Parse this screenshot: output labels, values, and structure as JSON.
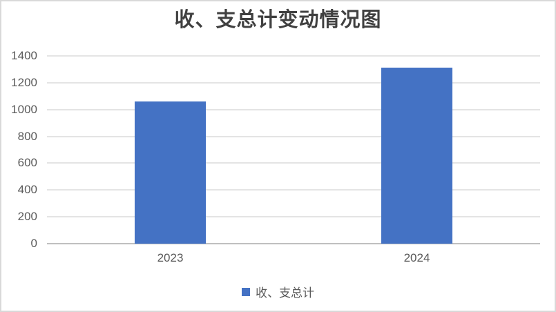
{
  "chart_data": {
    "type": "bar",
    "title": "收、支总计变动情况图",
    "categories": [
      "2023",
      "2024"
    ],
    "series": [
      {
        "name": "收、支总计",
        "color": "#4472C4",
        "values": [
          1060,
          1315
        ]
      }
    ],
    "xlabel": "",
    "ylabel": "",
    "ylim": [
      0,
      1400
    ],
    "yticks": [
      0,
      200,
      400,
      600,
      800,
      1000,
      1200,
      1400
    ],
    "grid": true,
    "legend_position": "bottom-center"
  },
  "legend": {
    "label": "收、支总计"
  },
  "colors": {
    "bar": "#4472C4",
    "gridline": "#E4E4E4",
    "axis_line": "#BFBFBF",
    "axis_text": "#595959",
    "title_text": "#404040",
    "frame_border": "#D9D9D9",
    "background": "#FFFFFF"
  }
}
